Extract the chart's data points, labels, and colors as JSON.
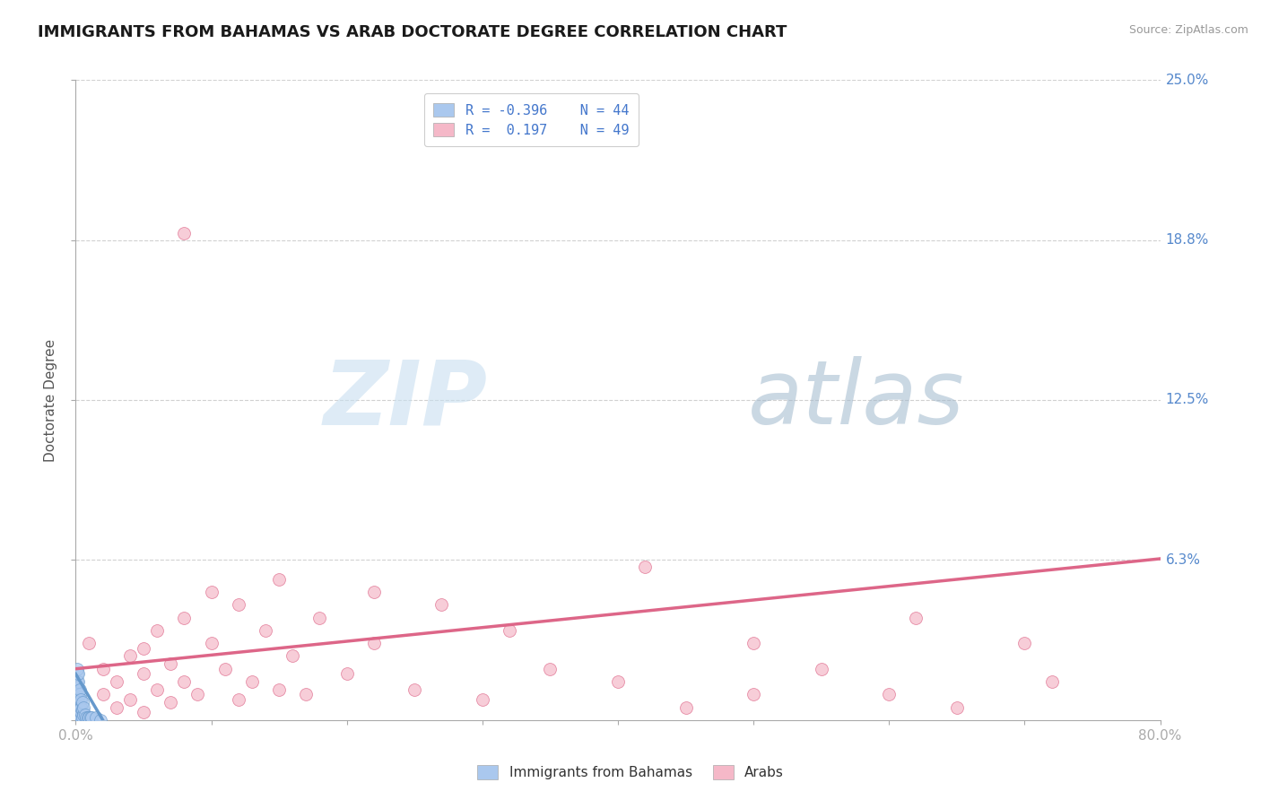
{
  "title": "IMMIGRANTS FROM BAHAMAS VS ARAB DOCTORATE DEGREE CORRELATION CHART",
  "source_text": "Source: ZipAtlas.com",
  "ylabel": "Doctorate Degree",
  "xlim": [
    0.0,
    0.8
  ],
  "ylim": [
    0.0,
    0.25
  ],
  "xticks": [
    0.0,
    0.1,
    0.2,
    0.3,
    0.4,
    0.5,
    0.6,
    0.7,
    0.8
  ],
  "xticklabels": [
    "0.0%",
    "",
    "",
    "",
    "",
    "",
    "",
    "",
    "80.0%"
  ],
  "yticks": [
    0.0,
    0.0625,
    0.125,
    0.1875,
    0.25
  ],
  "yticklabels": [
    "",
    "6.3%",
    "12.5%",
    "18.8%",
    "25.0%"
  ],
  "background_color": "#ffffff",
  "grid_color": "#cccccc",
  "watermark_zip": "ZIP",
  "watermark_atlas": "atlas",
  "legend_line1": "R = -0.396    N = 44",
  "legend_line2": "R =  0.197    N = 49",
  "series1_color": "#aac8ee",
  "series2_color": "#f5b8c8",
  "trendline1_color": "#6699cc",
  "trendline2_color": "#dd6688",
  "title_fontsize": 13,
  "axis_label_fontsize": 11,
  "tick_fontsize": 11,
  "bahamas_x": [
    0.001,
    0.001,
    0.001,
    0.001,
    0.001,
    0.001,
    0.001,
    0.001,
    0.001,
    0.001,
    0.002,
    0.002,
    0.002,
    0.002,
    0.002,
    0.002,
    0.002,
    0.002,
    0.002,
    0.002,
    0.003,
    0.003,
    0.003,
    0.003,
    0.003,
    0.003,
    0.003,
    0.004,
    0.004,
    0.004,
    0.004,
    0.005,
    0.005,
    0.005,
    0.006,
    0.006,
    0.007,
    0.008,
    0.009,
    0.01,
    0.011,
    0.012,
    0.015,
    0.018
  ],
  "bahamas_y": [
    0.0,
    0.002,
    0.003,
    0.005,
    0.007,
    0.01,
    0.012,
    0.015,
    0.018,
    0.02,
    0.0,
    0.001,
    0.003,
    0.005,
    0.007,
    0.009,
    0.011,
    0.013,
    0.015,
    0.018,
    0.0,
    0.002,
    0.004,
    0.006,
    0.008,
    0.01,
    0.012,
    0.001,
    0.003,
    0.005,
    0.008,
    0.001,
    0.004,
    0.007,
    0.002,
    0.005,
    0.002,
    0.001,
    0.001,
    0.001,
    0.001,
    0.001,
    0.001,
    0.0
  ],
  "arabs_x": [
    0.01,
    0.02,
    0.02,
    0.03,
    0.03,
    0.04,
    0.04,
    0.05,
    0.05,
    0.05,
    0.06,
    0.06,
    0.07,
    0.07,
    0.08,
    0.08,
    0.08,
    0.09,
    0.1,
    0.1,
    0.11,
    0.12,
    0.12,
    0.13,
    0.14,
    0.15,
    0.15,
    0.16,
    0.17,
    0.18,
    0.2,
    0.22,
    0.22,
    0.25,
    0.27,
    0.3,
    0.32,
    0.35,
    0.4,
    0.42,
    0.45,
    0.5,
    0.5,
    0.55,
    0.6,
    0.62,
    0.65,
    0.7,
    0.72
  ],
  "arabs_y": [
    0.03,
    0.01,
    0.02,
    0.005,
    0.015,
    0.008,
    0.025,
    0.003,
    0.018,
    0.028,
    0.012,
    0.035,
    0.007,
    0.022,
    0.015,
    0.04,
    0.19,
    0.01,
    0.03,
    0.05,
    0.02,
    0.008,
    0.045,
    0.015,
    0.035,
    0.012,
    0.055,
    0.025,
    0.01,
    0.04,
    0.018,
    0.03,
    0.05,
    0.012,
    0.045,
    0.008,
    0.035,
    0.02,
    0.015,
    0.06,
    0.005,
    0.01,
    0.03,
    0.02,
    0.01,
    0.04,
    0.005,
    0.03,
    0.015
  ],
  "trendline_pink_x0": 0.0,
  "trendline_pink_y0": 0.02,
  "trendline_pink_x1": 0.8,
  "trendline_pink_y1": 0.063,
  "trendline_blue_x0": 0.0,
  "trendline_blue_y0": 0.018,
  "trendline_blue_x1": 0.02,
  "trendline_blue_y1": 0.0
}
